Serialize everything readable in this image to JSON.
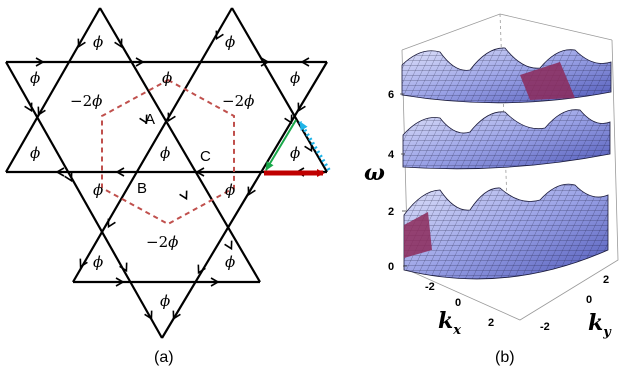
{
  "panel_a": {
    "caption": "(a)",
    "flux_label": "ϕ",
    "hex_flux_label": "−2ϕ",
    "hex_flux_prefix": "−2",
    "hex_flux_symbol": "ϕ",
    "sites": [
      "A",
      "B",
      "C"
    ],
    "colors": {
      "lattice": "#000000",
      "unit_cell": "#c0504d",
      "red_arrow": "#c00000",
      "green_arrow": "#19a84a",
      "cyan_arrow": "#1fb4e8"
    }
  },
  "panel_b": {
    "caption": "(b)",
    "omega_label": "ω",
    "kx_label": "k",
    "kx_sub": "x",
    "ky_label": "k",
    "ky_sub": "y",
    "omega_ticks": [
      "0",
      "2",
      "4",
      "6"
    ],
    "kx_ticks": [
      "-2",
      "0",
      "2"
    ],
    "ky_ticks": [
      "-2",
      "0",
      "2"
    ],
    "colors": {
      "surface_light": "#c8cdf2",
      "surface_dark": "#5a64c8",
      "surface_magenta": "#8c2a5a"
    }
  }
}
